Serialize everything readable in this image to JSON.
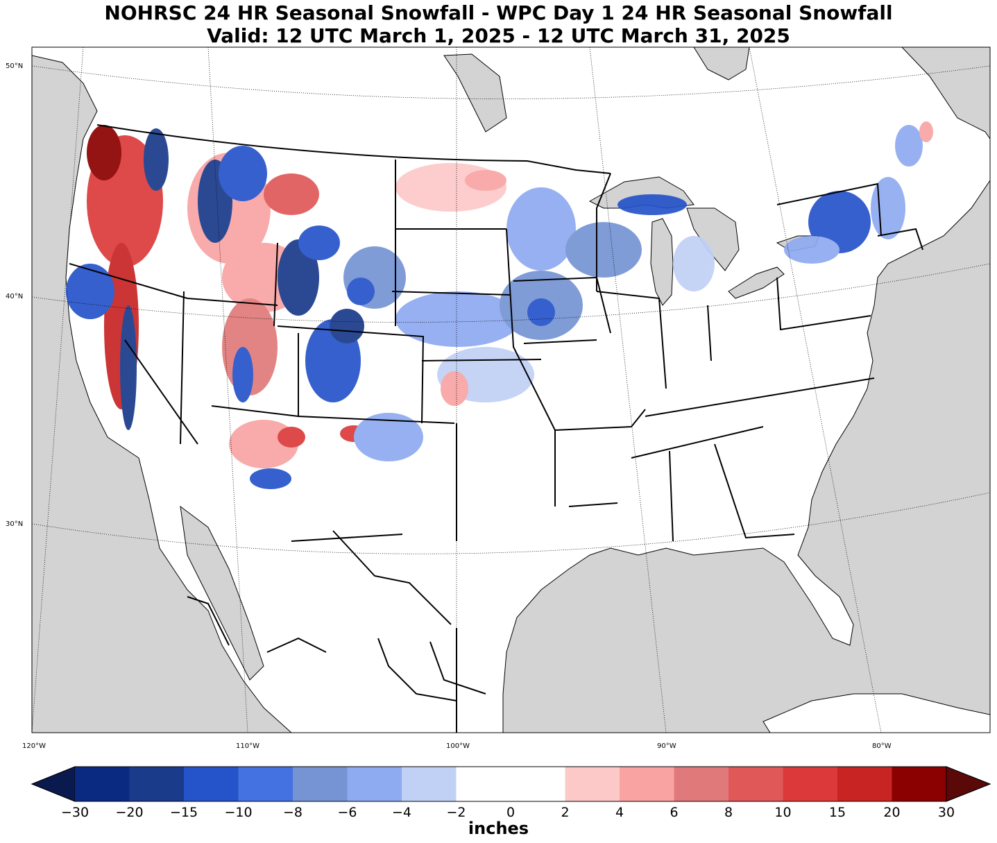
{
  "title_line1": "NOHRSC 24 HR Seasonal Snowfall - WPC Day 1 24 HR Seasonal Snowfall",
  "title_line2": "Valid: 12 UTC March 1, 2025 - 12 UTC March 31, 2025",
  "lat_labels": [
    "50°N",
    "40°N",
    "30°N"
  ],
  "lon_labels": [
    "120°W",
    "110°W",
    "100°W",
    "90°W",
    "80°W"
  ],
  "colorbar": {
    "units": "inches",
    "ticks": [
      "−30",
      "−20",
      "−15",
      "−10",
      "−8",
      "−6",
      "−4",
      "−2",
      "0",
      "2",
      "4",
      "6",
      "8",
      "10",
      "15",
      "20",
      "30"
    ],
    "colors": [
      "#0a2a82",
      "#1a3a8a",
      "#2553c9",
      "#4472e0",
      "#7694d4",
      "#8eaaf0",
      "#c1d0f5",
      "#ffffff",
      "#ffffff",
      "#fdc8c8",
      "#f9a3a3",
      "#e07a7a",
      "#e05858",
      "#dc3a3a",
      "#c82424",
      "#8b0000"
    ],
    "under_color": "#0a1a4f",
    "over_color": "#5a0808"
  },
  "colors": {
    "land": "#ffffff",
    "water": "#d3d3d3",
    "border": "#000000"
  }
}
